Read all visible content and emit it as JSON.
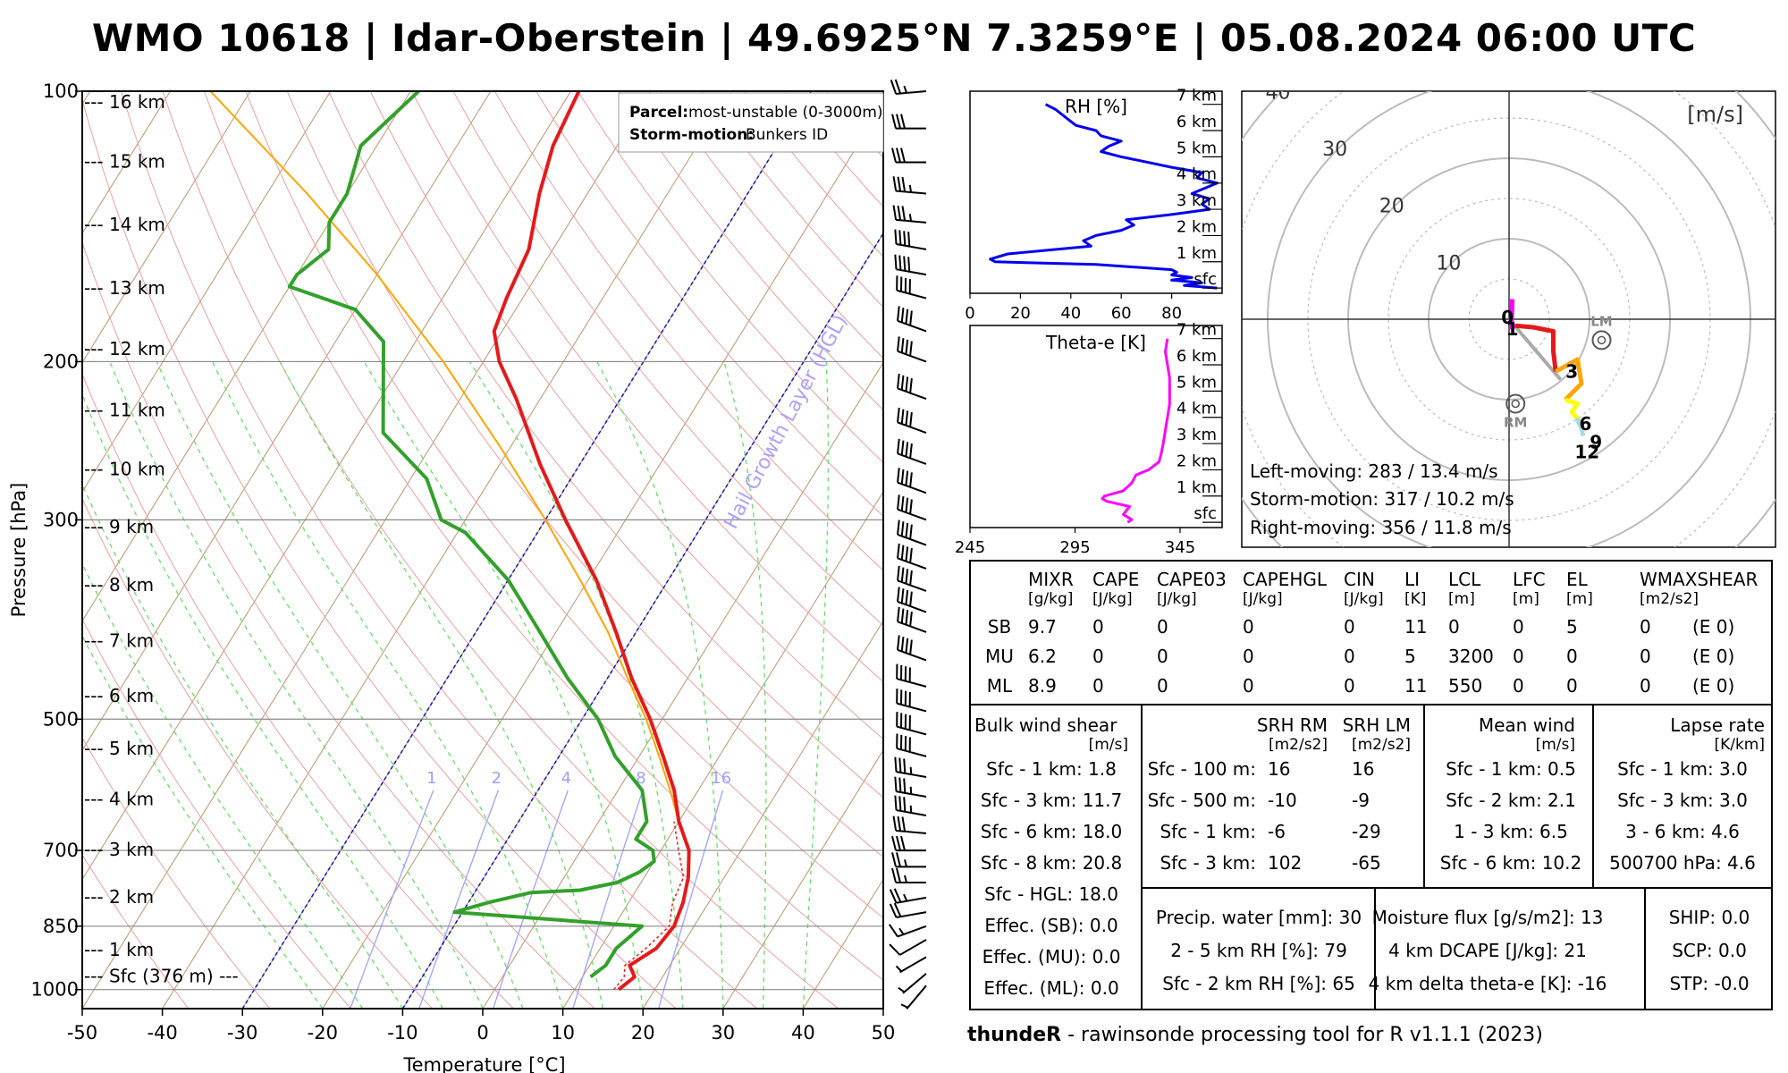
{
  "title": "WMO 10618 | Idar-Oberstein | 49.6925°N 7.3259°E | 05.08.2024 06:00 UTC",
  "skewt": {
    "xlabel": "Temperature [°C]",
    "ylabel": "Pressure [hPa]",
    "x_ticks": [
      "-50",
      "-40",
      "-30",
      "-20",
      "-10",
      "0",
      "10",
      "20",
      "30",
      "40",
      "50"
    ],
    "p_ticks": [
      {
        "p": 100,
        "label": "100"
      },
      {
        "p": 200,
        "label": "200"
      },
      {
        "p": 300,
        "label": "300"
      },
      {
        "p": 500,
        "label": "500"
      },
      {
        "p": 700,
        "label": "700"
      },
      {
        "p": 850,
        "label": "850"
      },
      {
        "p": 1000,
        "label": "1000"
      }
    ],
    "heights": [
      {
        "p": 968,
        "label": "--- Sfc (376 m) ---"
      },
      {
        "p": 905,
        "label": "--- 1 km"
      },
      {
        "p": 790,
        "label": "--- 2 km"
      },
      {
        "p": 700,
        "label": "--- 3 km"
      },
      {
        "p": 615,
        "label": "--- 4 km"
      },
      {
        "p": 540,
        "label": "--- 5 km"
      },
      {
        "p": 472,
        "label": "--- 6 km"
      },
      {
        "p": 410,
        "label": "--- 7 km"
      },
      {
        "p": 355,
        "label": "--- 8 km"
      },
      {
        "p": 306,
        "label": "--- 9 km"
      },
      {
        "p": 264,
        "label": "--- 10 km"
      },
      {
        "p": 227,
        "label": "--- 11 km"
      },
      {
        "p": 194,
        "label": "--- 12 km"
      },
      {
        "p": 166,
        "label": "--- 13 km"
      },
      {
        "p": 141,
        "label": "--- 14 km"
      },
      {
        "p": 120,
        "label": "--- 15 km"
      },
      {
        "p": 103,
        "label": "--- 16 km"
      }
    ],
    "legend": {
      "parcel_key": "Parcel:",
      "parcel_val": "most-unstable (0-3000m)",
      "storm_key": "Storm-motion:",
      "storm_val": "Bunkers ID"
    },
    "mixing_ratio_labels": [
      "1",
      "2",
      "4",
      "8",
      "16"
    ],
    "hgl_label": "Hail Growth Layer (HGL)",
    "colors": {
      "temperature": "#e31a1c",
      "dewpoint": "#33a02c",
      "parcel": "#ffa500",
      "wetbulb": "#b0a0ff"
    }
  },
  "chart_data": {
    "type": "line",
    "title": "Skew-T log-P sounding",
    "xlabel": "Temperature [°C]",
    "ylabel": "Pressure [hPa]",
    "xlim": [
      -50,
      50
    ],
    "ylim": [
      1050,
      100
    ],
    "temperature": [
      [
        1000,
        15.5
      ],
      [
        968,
        16.5
      ],
      [
        940,
        15
      ],
      [
        900,
        17
      ],
      [
        850,
        17.5
      ],
      [
        800,
        16.8
      ],
      [
        750,
        15.5
      ],
      [
        700,
        13.5
      ],
      [
        650,
        10
      ],
      [
        600,
        7
      ],
      [
        550,
        3
      ],
      [
        500,
        -1.5
      ],
      [
        450,
        -7
      ],
      [
        400,
        -12.5
      ],
      [
        350,
        -19
      ],
      [
        300,
        -27.5
      ],
      [
        260,
        -35
      ],
      [
        220,
        -43
      ],
      [
        200,
        -48
      ],
      [
        185,
        -51
      ],
      [
        170,
        -52
      ],
      [
        150,
        -53
      ],
      [
        130,
        -56
      ],
      [
        115,
        -58
      ],
      [
        100,
        -59
      ]
    ],
    "dewpoint": [
      [
        968,
        11
      ],
      [
        940,
        12
      ],
      [
        900,
        12
      ],
      [
        850,
        13.5
      ],
      [
        820,
        -11
      ],
      [
        800,
        -7.5
      ],
      [
        780,
        -3
      ],
      [
        775,
        3
      ],
      [
        760,
        7
      ],
      [
        740,
        9
      ],
      [
        720,
        10
      ],
      [
        700,
        9
      ],
      [
        680,
        6
      ],
      [
        650,
        6
      ],
      [
        600,
        3
      ],
      [
        550,
        -3
      ],
      [
        500,
        -8
      ],
      [
        450,
        -15
      ],
      [
        400,
        -22
      ],
      [
        350,
        -30
      ],
      [
        310,
        -39
      ],
      [
        300,
        -43
      ],
      [
        270,
        -48
      ],
      [
        240,
        -57
      ],
      [
        210,
        -61
      ],
      [
        190,
        -64
      ],
      [
        175,
        -70
      ],
      [
        165,
        -80
      ],
      [
        160,
        -80
      ],
      [
        150,
        -78
      ],
      [
        140,
        -80
      ],
      [
        130,
        -80
      ],
      [
        115,
        -82
      ],
      [
        100,
        -79
      ]
    ],
    "parcel": [
      [
        700,
        13.5
      ],
      [
        650,
        10
      ],
      [
        600,
        6.5
      ],
      [
        550,
        2.5
      ],
      [
        500,
        -2
      ],
      [
        450,
        -7.5
      ],
      [
        400,
        -13.5
      ],
      [
        350,
        -21
      ],
      [
        300,
        -30
      ],
      [
        250,
        -41
      ],
      [
        200,
        -55
      ],
      [
        160,
        -70
      ],
      [
        130,
        -85
      ],
      [
        100,
        -105
      ]
    ]
  },
  "wind_barbs": {
    "pressures": [
      990,
      960,
      920,
      880,
      850,
      820,
      790,
      760,
      730,
      700,
      670,
      640,
      610,
      580,
      550,
      520,
      490,
      460,
      430,
      400,
      380,
      360,
      340,
      320,
      300,
      280,
      260,
      240,
      220,
      200,
      185,
      170,
      160,
      150,
      140,
      130,
      120,
      110,
      100
    ],
    "speeds_kt": [
      5,
      5,
      5,
      10,
      15,
      20,
      25,
      25,
      25,
      30,
      30,
      35,
      35,
      35,
      40,
      40,
      40,
      40,
      40,
      40,
      40,
      40,
      40,
      40,
      40,
      40,
      40,
      40,
      40,
      40,
      40,
      40,
      40,
      40,
      35,
      35,
      30,
      30,
      25
    ],
    "dirs": [
      220,
      230,
      240,
      240,
      250,
      260,
      260,
      270,
      270,
      270,
      275,
      280,
      280,
      280,
      285,
      285,
      285,
      285,
      290,
      290,
      290,
      290,
      290,
      290,
      290,
      290,
      290,
      290,
      290,
      290,
      290,
      285,
      280,
      280,
      275,
      275,
      270,
      270,
      265
    ]
  },
  "rh_panel": {
    "title": "RH [%]",
    "x_ticks": [
      "0",
      "20",
      "40",
      "60",
      "80"
    ],
    "height_labels": [
      "sfc",
      "1 km",
      "2 km",
      "3 km",
      "4 km",
      "5 km",
      "6 km",
      "7 km"
    ],
    "rh_profile": [
      [
        0,
        98
      ],
      [
        0.1,
        85
      ],
      [
        0.2,
        92
      ],
      [
        0.3,
        80
      ],
      [
        0.4,
        88
      ],
      [
        0.5,
        80
      ],
      [
        0.6,
        82
      ],
      [
        0.7,
        80
      ],
      [
        0.9,
        50
      ],
      [
        1.0,
        10
      ],
      [
        1.1,
        8
      ],
      [
        1.3,
        15
      ],
      [
        1.6,
        48
      ],
      [
        1.8,
        45
      ],
      [
        2.0,
        50
      ],
      [
        2.2,
        60
      ],
      [
        2.4,
        65
      ],
      [
        2.6,
        62
      ],
      [
        2.8,
        80
      ],
      [
        3.0,
        95
      ],
      [
        3.2,
        92
      ],
      [
        3.4,
        95
      ],
      [
        3.6,
        88
      ],
      [
        3.8,
        93
      ],
      [
        4.0,
        98
      ],
      [
        4.2,
        90
      ],
      [
        4.4,
        92
      ],
      [
        4.6,
        80
      ],
      [
        4.8,
        70
      ],
      [
        5.0,
        60
      ],
      [
        5.2,
        52
      ],
      [
        5.4,
        55
      ],
      [
        5.6,
        60
      ],
      [
        5.8,
        52
      ],
      [
        6.0,
        50
      ],
      [
        6.2,
        42
      ],
      [
        6.5,
        38
      ],
      [
        6.8,
        34
      ],
      [
        7.0,
        30
      ]
    ],
    "color": "#0000ee"
  },
  "thetae_panel": {
    "title": "Theta-e [K]",
    "x_ticks": [
      "245",
      "295",
      "345"
    ],
    "height_labels": [
      "sfc",
      "1 km",
      "2 km",
      "3 km",
      "4 km",
      "5 km",
      "6 km",
      "7 km"
    ],
    "thetae_profile": [
      [
        0,
        320
      ],
      [
        0.1,
        322
      ],
      [
        0.3,
        318
      ],
      [
        0.6,
        321
      ],
      [
        0.8,
        310
      ],
      [
        0.9,
        308
      ],
      [
        1.0,
        309
      ],
      [
        1.2,
        318
      ],
      [
        1.5,
        322
      ],
      [
        1.8,
        324
      ],
      [
        2.0,
        330
      ],
      [
        2.3,
        335
      ],
      [
        2.6,
        336
      ],
      [
        3.0,
        337
      ],
      [
        3.5,
        338
      ],
      [
        4.0,
        339
      ],
      [
        4.5,
        340
      ],
      [
        5.0,
        340
      ],
      [
        5.5,
        340
      ],
      [
        6.0,
        339
      ],
      [
        6.5,
        338
      ],
      [
        7.0,
        339
      ]
    ],
    "color": "#ff00ff"
  },
  "hodograph": {
    "unit_label": "[m/s]",
    "ring_labels": [
      "10",
      "20",
      "30",
      "40"
    ],
    "trace": [
      [
        0,
        0.4,
        2.5
      ],
      [
        0.5,
        0.3,
        -1
      ],
      [
        1,
        0.8,
        -0.8
      ],
      [
        1.5,
        3,
        -1
      ],
      [
        2,
        5.5,
        -1.5
      ],
      [
        2.5,
        5.5,
        -4
      ],
      [
        3,
        5.8,
        -6.5
      ],
      [
        4,
        8.5,
        -5
      ],
      [
        5,
        9,
        -8
      ],
      [
        6,
        7,
        -10
      ],
      [
        7,
        8.5,
        -10.5
      ],
      [
        8,
        7.8,
        -11.5
      ],
      [
        9,
        9,
        -13
      ],
      [
        10,
        8.5,
        -12.5
      ],
      [
        11,
        9,
        -13.5
      ],
      [
        12,
        9.2,
        -14.5
      ]
    ],
    "trace_colors": [
      "#ff00ff",
      "#e31a1c",
      "#ffa500",
      "#ffff00",
      "#add8e6"
    ],
    "hour_labels": [
      {
        "t": "0",
        "u": -0.2,
        "v": 0.2
      },
      {
        "t": "1",
        "u": 0.4,
        "v": -1.2
      },
      {
        "t": "3",
        "u": 7.8,
        "v": -6.5
      },
      {
        "t": "6",
        "u": 9.5,
        "v": -13
      },
      {
        "t": "9",
        "u": 10.8,
        "v": -15.3
      },
      {
        "t": "12",
        "u": 9.7,
        "v": -16.5
      }
    ],
    "lm": {
      "label": "LM",
      "u": 11.5,
      "v": -2.6
    },
    "rm": {
      "label": "RM",
      "u": 0.8,
      "v": -10.5
    },
    "mean": {
      "u": 6.4,
      "v": -7.5
    },
    "text_lines": [
      "Left-moving: 283 / 13.4 m/s",
      "Storm-motion: 317 / 10.2 m/s",
      "Right-moving: 356 / 11.8 m/s"
    ]
  },
  "params": {
    "headers": [
      {
        "name": "MIXR",
        "unit": "[g/kg]"
      },
      {
        "name": "CAPE",
        "unit": "[J/kg]"
      },
      {
        "name": "CAPE03",
        "unit": "[J/kg]"
      },
      {
        "name": "CAPEHGL",
        "unit": "[J/kg]"
      },
      {
        "name": "CIN",
        "unit": "[J/kg]"
      },
      {
        "name": "LI",
        "unit": "[K]"
      },
      {
        "name": "LCL",
        "unit": "[m]"
      },
      {
        "name": "LFC",
        "unit": "[m]"
      },
      {
        "name": "EL",
        "unit": "[m]"
      },
      {
        "name": "WMAXSHEAR",
        "unit": "[m2/s2]"
      }
    ],
    "rows": [
      {
        "label": "SB",
        "vals": [
          "9.7",
          "0",
          "0",
          "0",
          "0",
          "11",
          "0",
          "0",
          "5",
          "0",
          "(E 0)"
        ]
      },
      {
        "label": "MU",
        "vals": [
          "6.2",
          "0",
          "0",
          "0",
          "0",
          "5",
          "3200",
          "0",
          "0",
          "0",
          "(E 0)"
        ]
      },
      {
        "label": "ML",
        "vals": [
          "8.9",
          "0",
          "0",
          "0",
          "0",
          "11",
          "550",
          "0",
          "0",
          "0",
          "(E 0)"
        ]
      }
    ]
  },
  "shear": {
    "title": "Bulk wind shear",
    "unit": "[m/s]",
    "rows": [
      "Sfc - 1 km: 1.8",
      "Sfc - 3 km: 11.7",
      "Sfc - 6 km: 18.0",
      "Sfc - 8 km: 20.8",
      "Sfc - HGL: 18.0",
      "Effec. (SB): 0.0",
      "Effec. (MU): 0.0",
      "Effec. (ML): 0.0"
    ]
  },
  "srh": {
    "h1": "SRH RM",
    "u1": "[m2/s2]",
    "h2": "SRH LM",
    "u2": "[m2/s2]",
    "rows": [
      {
        "label": "Sfc - 100 m:",
        "rm": "16",
        "lm": "16"
      },
      {
        "label": "Sfc - 500 m:",
        "rm": "-10",
        "lm": "-9"
      },
      {
        "label": "Sfc - 1 km:",
        "rm": "-6",
        "lm": "-29"
      },
      {
        "label": "Sfc - 3 km:",
        "rm": "102",
        "lm": "-65"
      }
    ]
  },
  "meanwind": {
    "title": "Mean wind",
    "unit": "[m/s]",
    "rows": [
      "Sfc - 1 km: 0.5",
      "Sfc - 2 km: 2.1",
      "1 - 3 km: 6.5",
      "Sfc - 6 km: 10.2"
    ]
  },
  "lapse": {
    "title": "Lapse rate",
    "unit": "[K/km]",
    "rows": [
      "Sfc - 1 km: 3.0",
      "Sfc - 3 km: 3.0",
      "3 - 6 km: 4.6",
      "500700 hPa: 4.6"
    ]
  },
  "moisture": {
    "rows": [
      "Precip. water [mm]: 30",
      "2 - 5 km RH [%]: 79",
      "Sfc - 2 km RH [%]: 65"
    ]
  },
  "flux": {
    "rows": [
      "Moisture flux [g/s/m2]: 13",
      "4 km DCAPE [J/kg]: 21",
      "4 km delta theta-e [K]: -16"
    ]
  },
  "indices": {
    "rows": [
      "SHIP: 0.0",
      "SCP: 0.0",
      "STP: -0.0"
    ]
  },
  "footer": {
    "bold": "thundeR",
    "rest": " - rawinsonde processing tool for R v1.1.1 (2023)"
  }
}
